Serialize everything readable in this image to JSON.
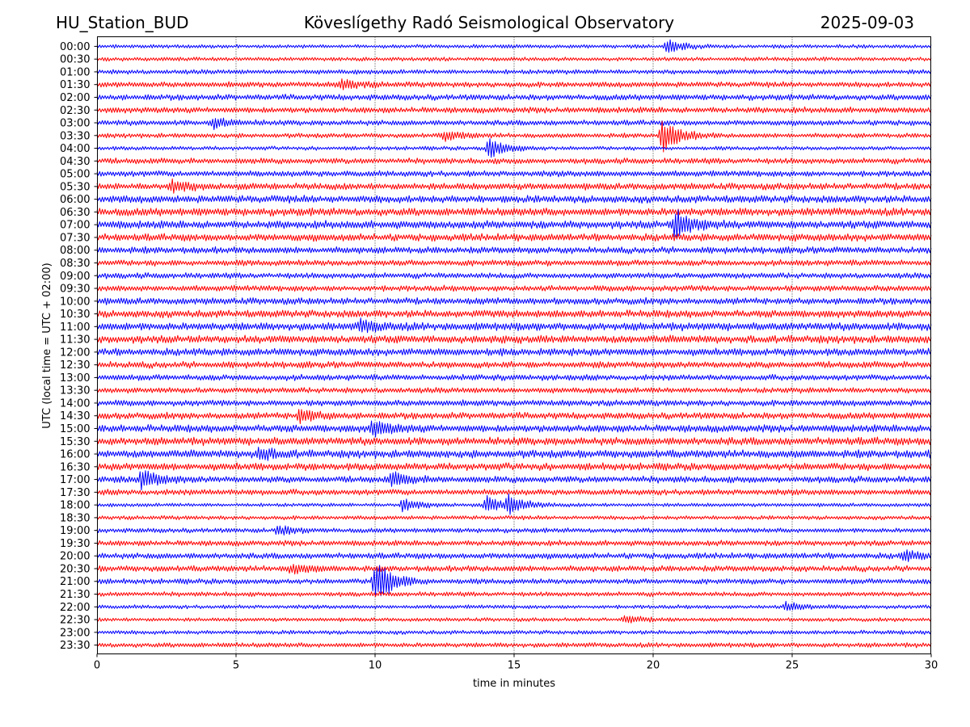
{
  "header": {
    "station": "HU_Station_BUD",
    "title": "Köveslígethy Radó Seismological Observatory",
    "date": "2025-09-03"
  },
  "chart_data": {
    "type": "line",
    "title": "Köveslígethy Radó Seismological Observatory",
    "xlabel": "time in minutes",
    "ylabel": "UTC (local time = UTC + 02:00)",
    "xlim": [
      0,
      30
    ],
    "x_ticks": [
      0,
      5,
      10,
      15,
      20,
      25,
      30
    ],
    "grid": "vertical dotted at major x ticks",
    "colors": {
      "even_row": "#0000ff",
      "odd_row": "#ff0000"
    },
    "rows": [
      "00:00",
      "00:30",
      "01:00",
      "01:30",
      "02:00",
      "02:30",
      "03:00",
      "03:30",
      "04:00",
      "04:30",
      "05:00",
      "05:30",
      "06:00",
      "06:30",
      "07:00",
      "07:30",
      "08:00",
      "08:30",
      "09:00",
      "09:30",
      "10:00",
      "10:30",
      "11:00",
      "11:30",
      "12:00",
      "12:30",
      "13:00",
      "13:30",
      "14:00",
      "14:30",
      "15:00",
      "15:30",
      "16:00",
      "16:30",
      "17:00",
      "17:30",
      "18:00",
      "18:30",
      "19:00",
      "19:30",
      "20:00",
      "20:30",
      "21:00",
      "21:30",
      "22:00",
      "22:30",
      "23:00",
      "23:30"
    ],
    "events": [
      {
        "row": "00:00",
        "minute": 20.5,
        "amplitude": 0.5
      },
      {
        "row": "01:30",
        "minute": 8.8,
        "amplitude": 0.35
      },
      {
        "row": "03:00",
        "minute": 4.2,
        "amplitude": 0.35
      },
      {
        "row": "03:30",
        "minute": 20.3,
        "amplitude": 1.3
      },
      {
        "row": "03:30",
        "minute": 12.5,
        "amplitude": 0.35
      },
      {
        "row": "04:00",
        "minute": 14.1,
        "amplitude": 0.75
      },
      {
        "row": "05:30",
        "minute": 2.7,
        "amplitude": 0.45
      },
      {
        "row": "07:00",
        "minute": 20.8,
        "amplitude": 1.1
      },
      {
        "row": "11:00",
        "minute": 9.5,
        "amplitude": 0.4
      },
      {
        "row": "14:30",
        "minute": 7.3,
        "amplitude": 0.45
      },
      {
        "row": "15:00",
        "minute": 9.9,
        "amplitude": 0.55
      },
      {
        "row": "16:00",
        "minute": 5.8,
        "amplitude": 0.45
      },
      {
        "row": "17:00",
        "minute": 1.6,
        "amplitude": 0.7
      },
      {
        "row": "17:00",
        "minute": 10.6,
        "amplitude": 0.45
      },
      {
        "row": "18:00",
        "minute": 11.0,
        "amplitude": 0.5
      },
      {
        "row": "18:00",
        "minute": 14.0,
        "amplitude": 0.65
      },
      {
        "row": "18:00",
        "minute": 14.8,
        "amplitude": 0.65
      },
      {
        "row": "19:00",
        "minute": 6.5,
        "amplitude": 0.35
      },
      {
        "row": "20:00",
        "minute": 29.0,
        "amplitude": 0.35
      },
      {
        "row": "20:30",
        "minute": 7.0,
        "amplitude": 0.35
      },
      {
        "row": "21:00",
        "minute": 10.0,
        "amplitude": 1.8
      },
      {
        "row": "22:00",
        "minute": 24.8,
        "amplitude": 0.35
      },
      {
        "row": "22:30",
        "minute": 19.0,
        "amplitude": 0.3
      }
    ]
  }
}
